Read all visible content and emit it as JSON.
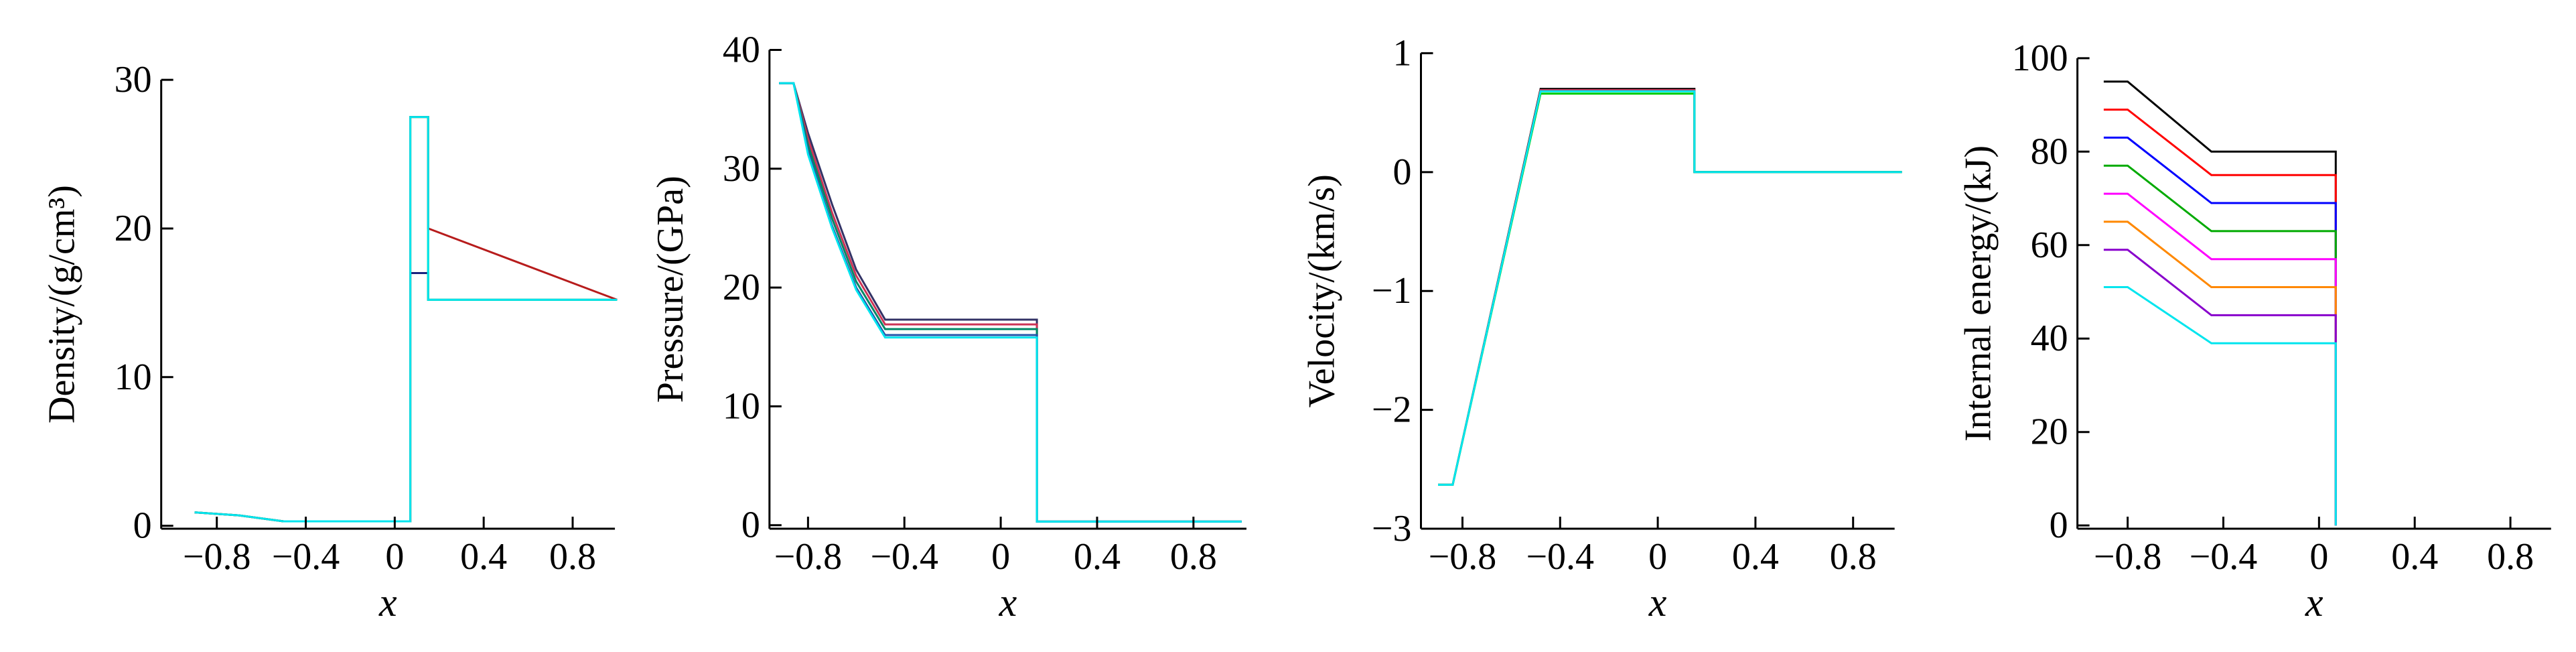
{
  "chart_data": [
    {
      "type": "line",
      "y_label": "Density/(g/cm³)",
      "x_label": "x",
      "x": [
        -0.9,
        -0.7,
        -0.5,
        0.07,
        0.07,
        0.15,
        0.15,
        1.0
      ],
      "series": [
        {
          "color": "#1a237e",
          "values": [
            0.9,
            0.7,
            0.3,
            0.3,
            17,
            17,
            15.2,
            15.2
          ]
        },
        {
          "color": "#00cc00",
          "values": [
            0.9,
            0.7,
            0.3,
            0.3,
            27.5,
            27.5,
            15.2,
            15.2
          ]
        },
        {
          "color": "#b71c1c",
          "values": [
            0.9,
            0.7,
            0.3,
            0.3,
            27.5,
            27.5,
            20,
            15.2
          ]
        },
        {
          "color": "#00e5ee",
          "values": [
            0.9,
            0.7,
            0.3,
            0.3,
            27.5,
            27.5,
            15.2,
            15.2
          ]
        }
      ],
      "xlim": [
        -1.05,
        0.99
      ],
      "ylim": [
        -0.2,
        30
      ],
      "xticks": [
        {
          "value": -0.8,
          "label": "−0.8"
        },
        {
          "value": -0.4,
          "label": "−0.4"
        },
        0,
        0.4,
        0.8
      ],
      "yticks": [
        0,
        10,
        20,
        30
      ]
    },
    {
      "type": "line",
      "y_label": "Pressure/(GPa)",
      "x_label": "x",
      "x": [
        -0.92,
        -0.86,
        -0.8,
        -0.7,
        -0.6,
        -0.48,
        0.15,
        0.15,
        1.0
      ],
      "series": [
        {
          "color": "#333366",
          "values": [
            37.2,
            37.2,
            33,
            27,
            21.5,
            17.3,
            17.3,
            0.3,
            0.3
          ]
        },
        {
          "color": "#cc3355",
          "values": [
            37.2,
            37.2,
            32.5,
            26.3,
            21,
            16.9,
            16.9,
            0.3,
            0.3
          ]
        },
        {
          "color": "#008866",
          "values": [
            37.2,
            37.2,
            32,
            25.8,
            20.5,
            16.5,
            16.5,
            0.3,
            0.3
          ]
        },
        {
          "color": "#2255aa",
          "values": [
            37.2,
            37.2,
            31.5,
            25.2,
            20,
            16,
            16,
            0.3,
            0.3
          ]
        },
        {
          "color": "#00e5ee",
          "values": [
            37.2,
            37.2,
            31.2,
            25,
            19.8,
            15.8,
            15.8,
            0.3,
            0.3
          ]
        }
      ],
      "xlim": [
        -0.96,
        1.02
      ],
      "ylim": [
        -0.3,
        40
      ],
      "xticks": [
        {
          "value": -0.8,
          "label": "−0.8"
        },
        {
          "value": -0.4,
          "label": "−0.4"
        },
        0,
        0.4,
        0.8
      ],
      "yticks": [
        0,
        10,
        20,
        30,
        40
      ]
    },
    {
      "type": "line",
      "y_label": "Velocity/(km/s)",
      "x_label": "x",
      "x": [
        -0.9,
        -0.84,
        -0.48,
        0.15,
        0.15,
        1.0
      ],
      "series": [
        {
          "color": "#000000",
          "values": [
            -2.63,
            -2.63,
            0.7,
            0.7,
            0,
            0
          ]
        },
        {
          "color": "#cc3355",
          "values": [
            -2.63,
            -2.63,
            0.69,
            0.69,
            0,
            0
          ]
        },
        {
          "color": "#00cc00",
          "values": [
            -2.63,
            -2.63,
            0.66,
            0.66,
            0,
            0
          ]
        },
        {
          "color": "#00e5ee",
          "values": [
            -2.63,
            -2.63,
            0.68,
            0.68,
            0,
            0
          ]
        }
      ],
      "xlim": [
        -0.97,
        0.97
      ],
      "ylim": [
        -3,
        1
      ],
      "xticks": [
        {
          "value": -0.8,
          "label": "−0.8"
        },
        {
          "value": -0.4,
          "label": "−0.4"
        },
        0,
        0.4,
        0.8
      ],
      "yticks": [
        {
          "value": -3,
          "label": "−3"
        },
        {
          "value": -2,
          "label": "−2"
        },
        {
          "value": -1,
          "label": "−1"
        },
        0,
        1
      ]
    },
    {
      "type": "line",
      "y_label": "Internal energy/(kJ)",
      "x_label": "x",
      "x": [
        -0.9,
        -0.8,
        -0.45,
        0.07,
        0.07
      ],
      "series": [
        {
          "color": "#000000",
          "values": [
            95,
            95,
            80,
            80,
            0
          ]
        },
        {
          "color": "#ff0000",
          "values": [
            89,
            89,
            75,
            75,
            0
          ]
        },
        {
          "color": "#0000ff",
          "values": [
            83,
            83,
            69,
            69,
            0
          ]
        },
        {
          "color": "#00aa00",
          "values": [
            77,
            77,
            63,
            63,
            0
          ]
        },
        {
          "color": "#ff00ff",
          "values": [
            71,
            71,
            57,
            57,
            0
          ]
        },
        {
          "color": "#ff8800",
          "values": [
            65,
            65,
            51,
            51,
            0
          ]
        },
        {
          "color": "#8800cc",
          "values": [
            59,
            59,
            45,
            45,
            0
          ]
        },
        {
          "color": "#00e5ee",
          "values": [
            51,
            51,
            39,
            39,
            0
          ]
        }
      ],
      "xlim": [
        -1.01,
        0.97
      ],
      "ylim": [
        -0.7,
        100
      ],
      "xticks": [
        {
          "value": -0.8,
          "label": "−0.8"
        },
        {
          "value": -0.4,
          "label": "−0.4"
        },
        0,
        0.4,
        0.8
      ],
      "yticks": [
        0,
        20,
        40,
        60,
        80,
        100
      ]
    }
  ]
}
